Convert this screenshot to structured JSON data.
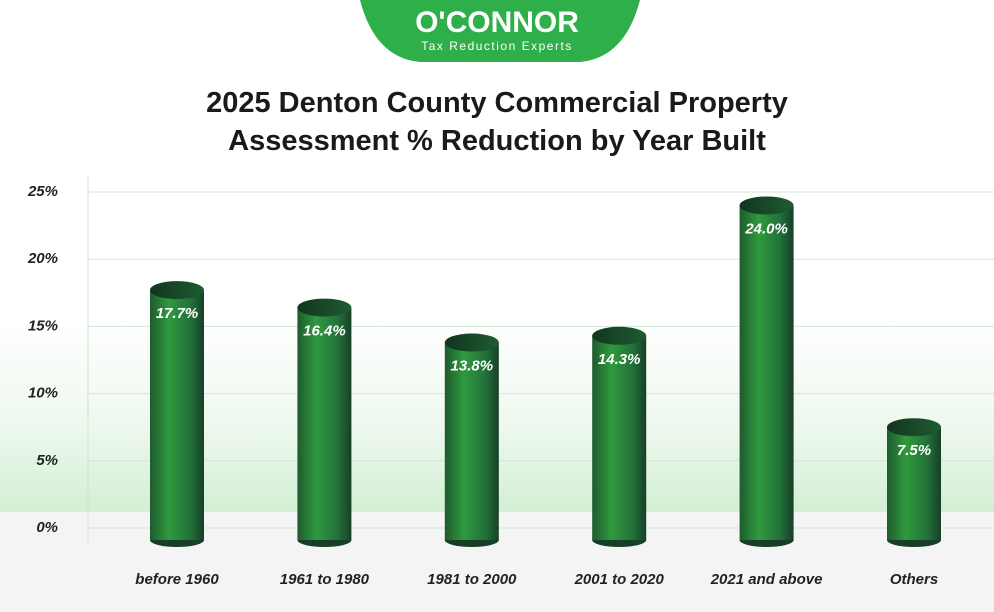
{
  "logo": {
    "name": "O'CONNOR",
    "tagline": "Tax Reduction Experts"
  },
  "chart_data": {
    "type": "bar",
    "title": "2025 Denton County Commercial Property Assessment % Reduction by Year Built",
    "categories": [
      "before 1960",
      "1961 to 1980",
      "1981 to 2000",
      "2001 to 2020",
      "2021 and above",
      "Others"
    ],
    "values": [
      17.7,
      16.4,
      13.8,
      14.3,
      24.0,
      7.5
    ],
    "value_labels": [
      "17.7%",
      "16.4%",
      "13.8%",
      "14.3%",
      "24.0%",
      "7.5%"
    ],
    "color": "#2f9a3e",
    "ylim": [
      0,
      25
    ],
    "yticks": [
      {
        "value": 0,
        "label": "0%"
      },
      {
        "value": 5,
        "label": "5%"
      },
      {
        "value": 10,
        "label": "10%"
      },
      {
        "value": 15,
        "label": "15%"
      },
      {
        "value": 20,
        "label": "20%"
      },
      {
        "value": 25,
        "label": "25%"
      }
    ],
    "grid": true
  }
}
